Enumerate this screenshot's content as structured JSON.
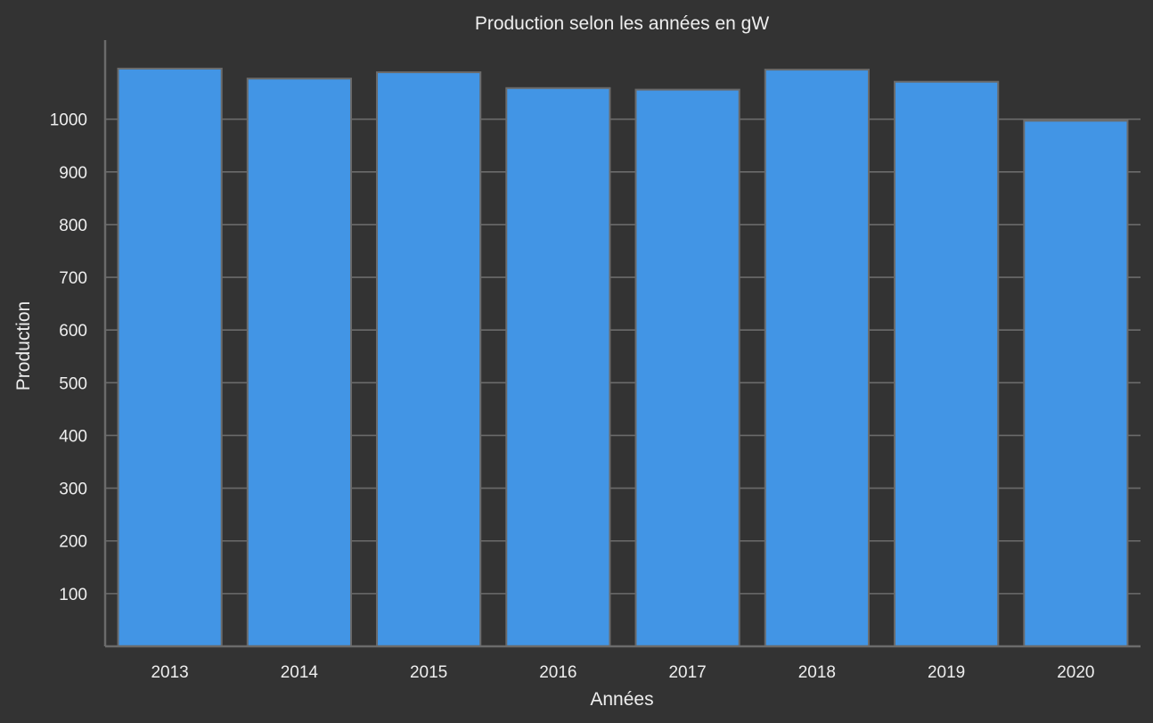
{
  "chart_data": {
    "type": "bar",
    "title": "Production selon les années en gW",
    "xlabel": "Années",
    "ylabel": "Production",
    "categories": [
      "2013",
      "2014",
      "2015",
      "2016",
      "2017",
      "2018",
      "2019",
      "2020"
    ],
    "values": [
      1096,
      1077,
      1089,
      1059,
      1056,
      1094,
      1071,
      997
    ],
    "ylim": [
      0,
      1150
    ],
    "yticks": [
      100,
      200,
      300,
      400,
      500,
      600,
      700,
      800,
      900,
      1000
    ],
    "grid": "horizontal",
    "colors": {
      "background": "#333333",
      "bar_fill": "#4295e5",
      "bar_edge": "#6b6b6b",
      "grid": "#6b6b6b",
      "axis": "#6b6b6b",
      "text": "#eeeeee"
    }
  }
}
